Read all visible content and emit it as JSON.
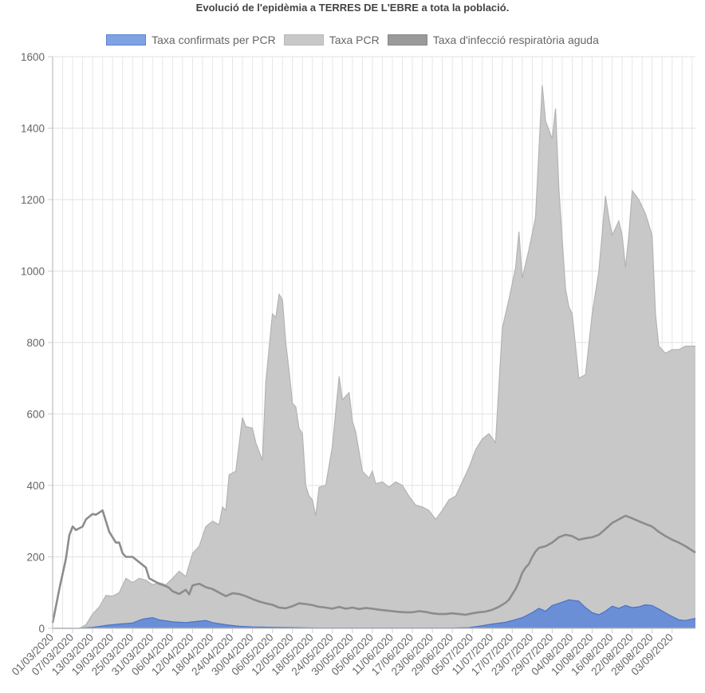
{
  "chart_data": {
    "type": "area",
    "title": "Evolució de l'epidèmia a TERRES DE L'EBRE a tota la població.",
    "xlabel": "",
    "ylabel": "",
    "ylim": [
      0,
      1600
    ],
    "y_ticks": [
      0,
      200,
      400,
      600,
      800,
      1000,
      1200,
      1400,
      1600
    ],
    "grid": true,
    "legend_position": "top",
    "x_tick_labels": [
      "01/03/2020",
      "07/03/2020",
      "13/03/2020",
      "19/03/2020",
      "25/03/2020",
      "31/03/2020",
      "06/04/2020",
      "12/04/2020",
      "18/04/2020",
      "24/04/2020",
      "30/04/2020",
      "06/05/2020",
      "12/05/2020",
      "18/05/2020",
      "24/05/2020",
      "30/05/2020",
      "05/06/2020",
      "11/06/2020",
      "17/06/2020",
      "23/06/2020",
      "29/06/2020",
      "05/07/2020",
      "11/07/2020",
      "17/07/2020",
      "23/07/2020",
      "29/07/2020",
      "04/08/2020",
      "10/08/2020",
      "16/08/2020",
      "22/08/2020",
      "28/08/2020",
      "03/09/2020"
    ],
    "x_tick_day_index": [
      0,
      6,
      12,
      18,
      24,
      30,
      36,
      42,
      48,
      54,
      60,
      66,
      72,
      78,
      84,
      90,
      96,
      102,
      108,
      114,
      120,
      126,
      132,
      138,
      144,
      150,
      156,
      162,
      168,
      174,
      180,
      186
    ],
    "x_day_count": 193,
    "series": [
      {
        "name": "Taxa confirmats per PCR",
        "fill": "#6b8fd6",
        "stroke": "#4a72c4",
        "type": "area",
        "points": [
          [
            0,
            0
          ],
          [
            8,
            0
          ],
          [
            12,
            3
          ],
          [
            16,
            8
          ],
          [
            20,
            12
          ],
          [
            24,
            15
          ],
          [
            27,
            26
          ],
          [
            30,
            30
          ],
          [
            32,
            24
          ],
          [
            36,
            18
          ],
          [
            40,
            16
          ],
          [
            44,
            20
          ],
          [
            46,
            22
          ],
          [
            48,
            16
          ],
          [
            52,
            10
          ],
          [
            56,
            6
          ],
          [
            60,
            4
          ],
          [
            66,
            3
          ],
          [
            72,
            2
          ],
          [
            80,
            1
          ],
          [
            90,
            1
          ],
          [
            100,
            1
          ],
          [
            110,
            1
          ],
          [
            120,
            1
          ],
          [
            125,
            2
          ],
          [
            128,
            6
          ],
          [
            132,
            12
          ],
          [
            136,
            17
          ],
          [
            138,
            22
          ],
          [
            141,
            30
          ],
          [
            144,
            44
          ],
          [
            146,
            56
          ],
          [
            148,
            48
          ],
          [
            150,
            64
          ],
          [
            152,
            70
          ],
          [
            155,
            80
          ],
          [
            158,
            76
          ],
          [
            160,
            58
          ],
          [
            162,
            44
          ],
          [
            164,
            38
          ],
          [
            166,
            48
          ],
          [
            168,
            62
          ],
          [
            170,
            56
          ],
          [
            172,
            64
          ],
          [
            174,
            58
          ],
          [
            176,
            60
          ],
          [
            178,
            66
          ],
          [
            180,
            64
          ],
          [
            182,
            54
          ],
          [
            185,
            38
          ],
          [
            188,
            24
          ],
          [
            190,
            22
          ],
          [
            193,
            28
          ]
        ]
      },
      {
        "name": "Taxa PCR",
        "fill": "#c8c8c8",
        "stroke": "#b3b3b3",
        "type": "area",
        "points": [
          [
            0,
            0
          ],
          [
            8,
            0
          ],
          [
            10,
            10
          ],
          [
            12,
            40
          ],
          [
            14,
            60
          ],
          [
            16,
            92
          ],
          [
            18,
            90
          ],
          [
            20,
            100
          ],
          [
            22,
            140
          ],
          [
            24,
            128
          ],
          [
            26,
            140
          ],
          [
            28,
            135
          ],
          [
            30,
            122
          ],
          [
            32,
            128
          ],
          [
            34,
            122
          ],
          [
            36,
            140
          ],
          [
            38,
            160
          ],
          [
            40,
            145
          ],
          [
            42,
            210
          ],
          [
            44,
            230
          ],
          [
            46,
            285
          ],
          [
            48,
            300
          ],
          [
            50,
            290
          ],
          [
            51,
            340
          ],
          [
            52,
            330
          ],
          [
            53,
            430
          ],
          [
            55,
            440
          ],
          [
            57,
            590
          ],
          [
            58,
            565
          ],
          [
            60,
            560
          ],
          [
            61,
            520
          ],
          [
            63,
            470
          ],
          [
            64,
            690
          ],
          [
            66,
            880
          ],
          [
            67,
            870
          ],
          [
            68,
            935
          ],
          [
            69,
            920
          ],
          [
            70,
            800
          ],
          [
            71,
            720
          ],
          [
            72,
            630
          ],
          [
            73,
            620
          ],
          [
            74,
            560
          ],
          [
            75,
            545
          ],
          [
            76,
            400
          ],
          [
            77,
            370
          ],
          [
            78,
            360
          ],
          [
            79,
            315
          ],
          [
            80,
            395
          ],
          [
            82,
            400
          ],
          [
            84,
            510
          ],
          [
            86,
            705
          ],
          [
            87,
            640
          ],
          [
            89,
            660
          ],
          [
            90,
            580
          ],
          [
            91,
            550
          ],
          [
            93,
            440
          ],
          [
            95,
            420
          ],
          [
            96,
            440
          ],
          [
            97,
            405
          ],
          [
            99,
            410
          ],
          [
            101,
            395
          ],
          [
            103,
            410
          ],
          [
            105,
            400
          ],
          [
            107,
            370
          ],
          [
            109,
            345
          ],
          [
            111,
            340
          ],
          [
            113,
            330
          ],
          [
            115,
            305
          ],
          [
            117,
            330
          ],
          [
            119,
            360
          ],
          [
            121,
            370
          ],
          [
            123,
            410
          ],
          [
            125,
            450
          ],
          [
            127,
            500
          ],
          [
            129,
            530
          ],
          [
            131,
            545
          ],
          [
            133,
            520
          ],
          [
            135,
            840
          ],
          [
            137,
            920
          ],
          [
            139,
            1010
          ],
          [
            140,
            1110
          ],
          [
            141,
            980
          ],
          [
            143,
            1060
          ],
          [
            145,
            1150
          ],
          [
            147,
            1520
          ],
          [
            148,
            1420
          ],
          [
            150,
            1370
          ],
          [
            151,
            1455
          ],
          [
            152,
            1230
          ],
          [
            154,
            950
          ],
          [
            155,
            900
          ],
          [
            156,
            880
          ],
          [
            158,
            700
          ],
          [
            160,
            710
          ],
          [
            162,
            880
          ],
          [
            164,
            1000
          ],
          [
            166,
            1210
          ],
          [
            167,
            1150
          ],
          [
            168,
            1100
          ],
          [
            170,
            1140
          ],
          [
            171,
            1100
          ],
          [
            172,
            1010
          ],
          [
            173,
            1100
          ],
          [
            174,
            1225
          ],
          [
            176,
            1200
          ],
          [
            178,
            1160
          ],
          [
            180,
            1100
          ],
          [
            181,
            880
          ],
          [
            182,
            790
          ],
          [
            184,
            770
          ],
          [
            186,
            780
          ],
          [
            188,
            780
          ],
          [
            190,
            790
          ],
          [
            193,
            790
          ]
        ]
      },
      {
        "name": "Taxa d'infecció respiratòria aguda",
        "stroke": "#8c8c8c",
        "type": "line",
        "points": [
          [
            0,
            15
          ],
          [
            2,
            110
          ],
          [
            4,
            195
          ],
          [
            5,
            260
          ],
          [
            6,
            285
          ],
          [
            7,
            275
          ],
          [
            9,
            285
          ],
          [
            10,
            305
          ],
          [
            12,
            320
          ],
          [
            13,
            318
          ],
          [
            15,
            330
          ],
          [
            16,
            300
          ],
          [
            17,
            270
          ],
          [
            18,
            255
          ],
          [
            19,
            240
          ],
          [
            20,
            240
          ],
          [
            21,
            210
          ],
          [
            22,
            200
          ],
          [
            24,
            200
          ],
          [
            26,
            185
          ],
          [
            28,
            170
          ],
          [
            29,
            140
          ],
          [
            30,
            135
          ],
          [
            32,
            125
          ],
          [
            34,
            118
          ],
          [
            35,
            113
          ],
          [
            36,
            104
          ],
          [
            38,
            96
          ],
          [
            40,
            108
          ],
          [
            41,
            95
          ],
          [
            42,
            120
          ],
          [
            44,
            125
          ],
          [
            46,
            115
          ],
          [
            48,
            110
          ],
          [
            50,
            100
          ],
          [
            52,
            90
          ],
          [
            54,
            98
          ],
          [
            56,
            96
          ],
          [
            58,
            90
          ],
          [
            60,
            82
          ],
          [
            62,
            75
          ],
          [
            64,
            70
          ],
          [
            66,
            66
          ],
          [
            68,
            58
          ],
          [
            70,
            56
          ],
          [
            72,
            62
          ],
          [
            74,
            70
          ],
          [
            76,
            68
          ],
          [
            78,
            65
          ],
          [
            80,
            60
          ],
          [
            82,
            58
          ],
          [
            84,
            55
          ],
          [
            86,
            60
          ],
          [
            88,
            55
          ],
          [
            90,
            58
          ],
          [
            92,
            54
          ],
          [
            94,
            57
          ],
          [
            96,
            55
          ],
          [
            98,
            52
          ],
          [
            100,
            50
          ],
          [
            102,
            48
          ],
          [
            104,
            46
          ],
          [
            106,
            45
          ],
          [
            108,
            45
          ],
          [
            110,
            48
          ],
          [
            112,
            46
          ],
          [
            114,
            42
          ],
          [
            116,
            40
          ],
          [
            118,
            40
          ],
          [
            120,
            42
          ],
          [
            122,
            40
          ],
          [
            124,
            38
          ],
          [
            126,
            42
          ],
          [
            128,
            45
          ],
          [
            130,
            47
          ],
          [
            132,
            52
          ],
          [
            134,
            60
          ],
          [
            136,
            72
          ],
          [
            137,
            80
          ],
          [
            138,
            95
          ],
          [
            139,
            110
          ],
          [
            140,
            130
          ],
          [
            141,
            155
          ],
          [
            142,
            170
          ],
          [
            143,
            180
          ],
          [
            144,
            200
          ],
          [
            145,
            215
          ],
          [
            146,
            225
          ],
          [
            148,
            230
          ],
          [
            150,
            240
          ],
          [
            152,
            255
          ],
          [
            154,
            262
          ],
          [
            156,
            258
          ],
          [
            158,
            248
          ],
          [
            160,
            252
          ],
          [
            162,
            255
          ],
          [
            164,
            262
          ],
          [
            166,
            278
          ],
          [
            168,
            295
          ],
          [
            170,
            305
          ],
          [
            172,
            315
          ],
          [
            174,
            308
          ],
          [
            176,
            300
          ],
          [
            178,
            292
          ],
          [
            180,
            285
          ],
          [
            182,
            270
          ],
          [
            184,
            258
          ],
          [
            186,
            248
          ],
          [
            188,
            240
          ],
          [
            190,
            230
          ],
          [
            193,
            212
          ]
        ]
      }
    ]
  }
}
